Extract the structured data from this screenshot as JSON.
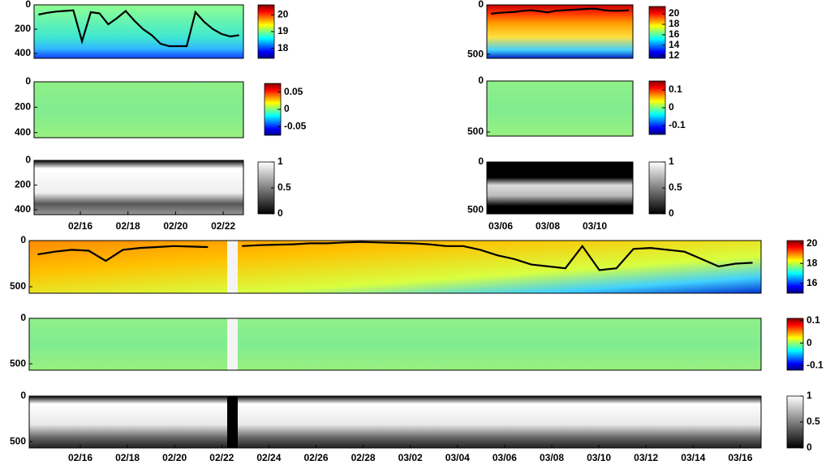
{
  "chart_data": [
    {
      "type": "heatmap",
      "ylim": [
        0,
        440
      ],
      "yticks": [
        0,
        200,
        400
      ],
      "colorbar": {
        "colormap": "jet",
        "clim": [
          17.4,
          20.6
        ],
        "ticks": [
          20,
          19,
          18
        ]
      },
      "line": {
        "color": "#000000",
        "values": [
          80,
          65,
          55,
          50,
          45,
          300,
          60,
          70,
          160,
          110,
          50,
          130,
          200,
          250,
          320,
          340,
          340,
          340,
          60,
          140,
          200,
          240,
          260,
          250
        ]
      }
    },
    {
      "type": "heatmap",
      "ylim": [
        0,
        440
      ],
      "yticks": [
        0,
        200,
        400
      ],
      "colorbar": {
        "colormap": "jet",
        "clim": [
          -0.075,
          0.075
        ],
        "ticks": [
          0.05,
          0,
          -0.05
        ]
      }
    },
    {
      "type": "heatmap",
      "ylim": [
        0,
        440
      ],
      "yticks": [
        0,
        200,
        400
      ],
      "colorbar": {
        "colormap": "gray",
        "clim": [
          0,
          1
        ],
        "ticks": [
          1,
          0.5,
          0
        ]
      },
      "categories": [
        "02/16",
        "02/18",
        "02/20",
        "02/22"
      ]
    },
    {
      "type": "heatmap",
      "ylim": [
        0,
        540
      ],
      "yticks": [
        0,
        500
      ],
      "colorbar": {
        "colormap": "jet",
        "clim": [
          11.5,
          21.4
        ],
        "ticks": [
          20,
          18,
          16,
          14,
          12
        ]
      },
      "line": {
        "color": "#000000",
        "values": [
          90,
          80,
          75,
          70,
          60,
          55,
          65,
          75,
          60,
          55,
          50,
          45,
          40,
          40,
          55,
          60,
          60,
          55
        ]
      }
    },
    {
      "type": "heatmap",
      "ylim": [
        0,
        540
      ],
      "yticks": [
        0,
        500
      ],
      "colorbar": {
        "colormap": "jet",
        "clim": [
          -0.15,
          0.15
        ],
        "ticks": [
          0.1,
          0,
          -0.1
        ]
      }
    },
    {
      "type": "heatmap",
      "ylim": [
        0,
        540
      ],
      "yticks": [
        0,
        500
      ],
      "colorbar": {
        "colormap": "gray",
        "clim": [
          0,
          1
        ],
        "ticks": [
          1,
          0.5,
          0
        ]
      },
      "categories": [
        "03/06",
        "03/08",
        "03/10"
      ]
    },
    {
      "type": "heatmap",
      "ylim": [
        0,
        570
      ],
      "yticks": [
        0,
        500
      ],
      "colorbar": {
        "colormap": "jet",
        "clim": [
          15,
          20.3
        ],
        "ticks": [
          20,
          18,
          16
        ]
      },
      "line": {
        "color": "#000000",
        "values": [
          150,
          120,
          100,
          110,
          220,
          100,
          80,
          70,
          60,
          65,
          70,
          null,
          60,
          50,
          45,
          40,
          30,
          30,
          20,
          15,
          20,
          25,
          30,
          40,
          60,
          60,
          100,
          160,
          200,
          260,
          280,
          300,
          60,
          320,
          300,
          90,
          80,
          100,
          120,
          200,
          280,
          250,
          240
        ]
      }
    },
    {
      "type": "heatmap",
      "ylim": [
        0,
        570
      ],
      "yticks": [
        0,
        500
      ],
      "colorbar": {
        "colormap": "jet",
        "clim": [
          -0.12,
          0.11
        ],
        "ticks": [
          0.1,
          0,
          -0.1
        ]
      }
    },
    {
      "type": "heatmap",
      "ylim": [
        0,
        570
      ],
      "yticks": [
        0,
        500
      ],
      "colorbar": {
        "colormap": "gray",
        "clim": [
          0,
          1
        ],
        "ticks": [
          1,
          0.5,
          0
        ]
      },
      "categories": [
        "02/16",
        "02/18",
        "02/20",
        "02/22",
        "02/24",
        "02/26",
        "02/28",
        "03/02",
        "03/04",
        "03/06",
        "03/08",
        "03/10",
        "03/12",
        "03/14",
        "03/16"
      ]
    }
  ]
}
